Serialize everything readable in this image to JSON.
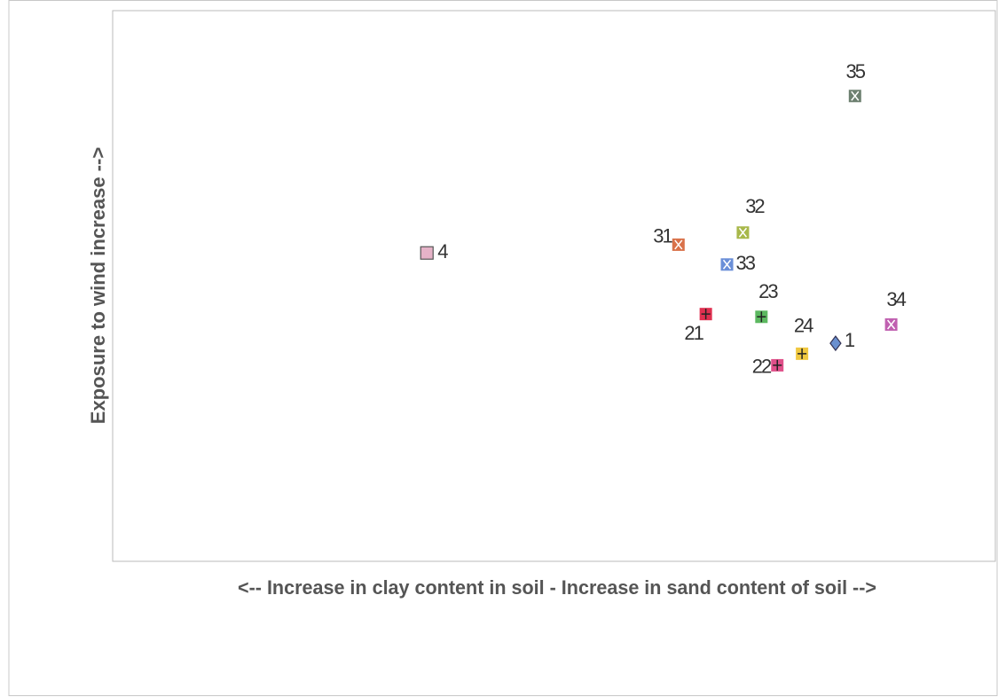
{
  "chart_data": {
    "type": "scatter",
    "xlabel": "<-- Increase in clay content in soil - Increase in sand content of soil -->",
    "ylabel": "Exposure to wind increase -->",
    "xlim": [
      0,
      100
    ],
    "ylim": [
      0,
      100
    ],
    "series": [
      {
        "name": "4",
        "color": "#e6b3c8",
        "marker": "square",
        "x": [
          35.6
        ],
        "values": [
          56.0
        ]
      },
      {
        "name": "31",
        "color": "#d9724a",
        "marker": "x-square",
        "x": [
          64.1
        ],
        "values": [
          57.5
        ]
      },
      {
        "name": "32",
        "color": "#a8b84a",
        "marker": "x-square",
        "x": [
          71.4
        ],
        "values": [
          59.7
        ]
      },
      {
        "name": "33",
        "color": "#6a8fd8",
        "marker": "x-square",
        "x": [
          69.6
        ],
        "values": [
          53.9
        ]
      },
      {
        "name": "35",
        "color": "#6d8070",
        "marker": "x-square",
        "x": [
          84.1
        ],
        "values": [
          84.5
        ]
      },
      {
        "name": "21",
        "color": "#e03050",
        "marker": "plus-square",
        "x": [
          67.2
        ],
        "values": [
          44.9
        ]
      },
      {
        "name": "23",
        "color": "#5cb860",
        "marker": "plus-square",
        "x": [
          73.5
        ],
        "values": [
          44.4
        ]
      },
      {
        "name": "34",
        "color": "#c060b0",
        "marker": "x-square",
        "x": [
          88.2
        ],
        "values": [
          43.0
        ]
      },
      {
        "name": "24",
        "color": "#f0c840",
        "marker": "plus-square",
        "x": [
          78.1
        ],
        "values": [
          37.7
        ]
      },
      {
        "name": "1",
        "color": "#6a90d0",
        "marker": "diamond",
        "x": [
          81.9
        ],
        "values": [
          39.6
        ]
      },
      {
        "name": "22",
        "color": "#e0508a",
        "marker": "plus-square",
        "x": [
          75.3
        ],
        "values": [
          35.6
        ]
      }
    ]
  }
}
